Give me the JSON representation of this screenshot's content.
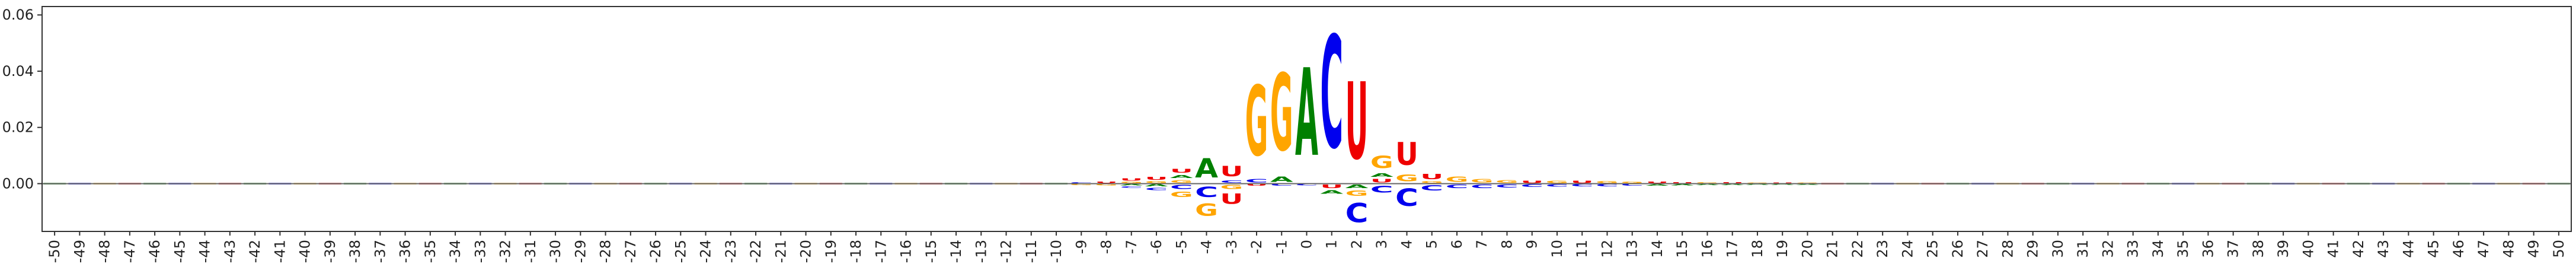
{
  "chart_data": {
    "type": "sequence-logo",
    "alphabet": [
      "A",
      "C",
      "G",
      "U"
    ],
    "colors": {
      "A": "#008000",
      "C": "#0000ee",
      "G": "#ffa500",
      "U": "#ee0000"
    },
    "x": [
      -50,
      -49,
      -48,
      -47,
      -46,
      -45,
      -44,
      -43,
      -42,
      -41,
      -40,
      -39,
      -38,
      -37,
      -36,
      -35,
      -34,
      -33,
      -32,
      -31,
      -30,
      -29,
      -28,
      -27,
      -26,
      -25,
      -24,
      -23,
      -22,
      -21,
      -20,
      -19,
      -18,
      -17,
      -16,
      -15,
      -14,
      -13,
      -12,
      -11,
      -10,
      -9,
      -8,
      -7,
      -6,
      -5,
      -4,
      -3,
      -2,
      -1,
      0,
      1,
      2,
      3,
      4,
      5,
      6,
      7,
      8,
      9,
      10,
      11,
      12,
      13,
      14,
      15,
      16,
      17,
      18,
      19,
      20,
      21,
      22,
      23,
      24,
      25,
      26,
      27,
      28,
      29,
      30,
      31,
      32,
      33,
      34,
      35,
      36,
      37,
      38,
      39,
      40,
      41,
      42,
      43,
      44,
      45,
      46,
      47,
      48,
      49,
      50
    ],
    "x_tick_labels": [
      "-50",
      "-49",
      "-48",
      "-47",
      "-46",
      "-45",
      "-44",
      "-43",
      "-42",
      "-41",
      "-40",
      "-39",
      "-38",
      "-37",
      "-36",
      "-35",
      "-34",
      "-33",
      "-32",
      "-31",
      "-30",
      "-29",
      "-28",
      "-27",
      "-26",
      "-25",
      "-24",
      "-23",
      "-22",
      "-21",
      "-20",
      "-19",
      "-18",
      "-17",
      "-16",
      "-15",
      "-14",
      "-13",
      "-12",
      "-11",
      "-10",
      "-9",
      "-8",
      "-7",
      "-6",
      "-5",
      "-4",
      "-3",
      "-2",
      "-1",
      "0",
      "1",
      "2",
      "3",
      "4",
      "5",
      "6",
      "7",
      "8",
      "9",
      "10",
      "11",
      "12",
      "13",
      "14",
      "15",
      "16",
      "17",
      "18",
      "19",
      "20",
      "21",
      "22",
      "23",
      "24",
      "25",
      "26",
      "27",
      "28",
      "29",
      "30",
      "31",
      "32",
      "33",
      "34",
      "35",
      "36",
      "37",
      "38",
      "39",
      "40",
      "41",
      "42",
      "43",
      "44",
      "45",
      "46",
      "47",
      "48",
      "49",
      "50"
    ],
    "y_ticks": [
      0.0,
      0.02,
      0.04,
      0.06
    ],
    "y_tick_labels": [
      "0.00",
      "0.02",
      "0.04",
      "0.06"
    ],
    "ylim": [
      -0.017,
      0.063
    ],
    "baseline": 0.0,
    "grid": false,
    "columns": [
      {
        "pos": -9,
        "letters": [
          [
            "C",
            0.0006
          ],
          [
            "G",
            -0.0007
          ]
        ]
      },
      {
        "pos": -8,
        "letters": [
          [
            "U",
            0.0008
          ],
          [
            "G",
            -0.0008
          ]
        ]
      },
      {
        "pos": -7,
        "letters": [
          [
            "U",
            0.0012
          ],
          [
            "G",
            0.0008
          ],
          [
            "A",
            -0.0008
          ],
          [
            "C",
            -0.0009
          ]
        ]
      },
      {
        "pos": -6,
        "letters": [
          [
            "U",
            0.0018
          ],
          [
            "G",
            0.001
          ],
          [
            "C",
            -0.0014
          ],
          [
            "A",
            -0.0012
          ]
        ]
      },
      {
        "pos": -5,
        "letters": [
          [
            "U",
            0.0022
          ],
          [
            "A",
            0.0018
          ],
          [
            "G",
            0.0016
          ],
          [
            "C",
            -0.0024
          ],
          [
            "G",
            -0.003
          ]
        ]
      },
      {
        "pos": -4,
        "letters": [
          [
            "A",
            0.011
          ],
          [
            "C",
            -0.006
          ],
          [
            "G",
            -0.007
          ]
        ]
      },
      {
        "pos": -3,
        "letters": [
          [
            "U",
            0.006
          ],
          [
            "C",
            0.0014
          ],
          [
            "G",
            -0.0024
          ],
          [
            "U",
            -0.006
          ]
        ]
      },
      {
        "pos": -2,
        "letters": [
          [
            "G",
            0.04
          ],
          [
            "C",
            0.002
          ],
          [
            "U",
            -0.001
          ]
        ]
      },
      {
        "pos": -1,
        "letters": [
          [
            "G",
            0.044
          ],
          [
            "A",
            0.003
          ],
          [
            "C",
            -0.001
          ]
        ]
      },
      {
        "pos": 0,
        "letters": [
          [
            "A",
            0.05
          ],
          [
            "C",
            -0.0008
          ]
        ]
      },
      {
        "pos": 1,
        "letters": [
          [
            "C",
            0.064
          ],
          [
            "U",
            -0.002
          ],
          [
            "A",
            -0.002
          ]
        ]
      },
      {
        "pos": 2,
        "letters": [
          [
            "U",
            0.044
          ],
          [
            "A",
            -0.002
          ],
          [
            "G",
            -0.003
          ],
          [
            "C",
            -0.011
          ]
        ]
      },
      {
        "pos": 3,
        "letters": [
          [
            "G",
            0.007
          ],
          [
            "U",
            0.002
          ],
          [
            "A",
            0.002
          ],
          [
            "C",
            -0.004
          ]
        ]
      },
      {
        "pos": 4,
        "letters": [
          [
            "U",
            0.013
          ],
          [
            "G",
            0.004
          ],
          [
            "C",
            -0.01
          ]
        ]
      },
      {
        "pos": 5,
        "letters": [
          [
            "U",
            0.003
          ],
          [
            "G",
            0.001
          ],
          [
            "C",
            -0.003
          ]
        ]
      },
      {
        "pos": 6,
        "letters": [
          [
            "G",
            0.003
          ],
          [
            "C",
            -0.002
          ]
        ]
      },
      {
        "pos": 7,
        "letters": [
          [
            "G",
            0.002
          ],
          [
            "C",
            -0.002
          ]
        ]
      },
      {
        "pos": 8,
        "letters": [
          [
            "G",
            0.0016
          ],
          [
            "C",
            -0.0018
          ]
        ]
      },
      {
        "pos": 9,
        "letters": [
          [
            "U",
            0.0012
          ],
          [
            "C",
            -0.0015
          ]
        ]
      },
      {
        "pos": 10,
        "letters": [
          [
            "G",
            0.0012
          ],
          [
            "C",
            -0.0014
          ]
        ]
      },
      {
        "pos": 11,
        "letters": [
          [
            "U",
            0.0012
          ],
          [
            "C",
            -0.0012
          ]
        ]
      },
      {
        "pos": 12,
        "letters": [
          [
            "G",
            0.001
          ],
          [
            "C",
            -0.0012
          ]
        ]
      },
      {
        "pos": 13,
        "letters": [
          [
            "G",
            0.0009
          ],
          [
            "C",
            -0.001
          ]
        ]
      },
      {
        "pos": 14,
        "letters": [
          [
            "U",
            0.0008
          ],
          [
            "A",
            -0.0009
          ]
        ]
      },
      {
        "pos": 15,
        "letters": [
          [
            "U",
            0.0007
          ],
          [
            "A",
            -0.0008
          ]
        ]
      },
      {
        "pos": 16,
        "letters": [
          [
            "G",
            0.0006
          ],
          [
            "A",
            -0.0007
          ]
        ]
      },
      {
        "pos": 17,
        "letters": [
          [
            "U",
            0.0006
          ],
          [
            "A",
            -0.0007
          ]
        ]
      },
      {
        "pos": 18,
        "letters": [
          [
            "G",
            0.0005
          ],
          [
            "A",
            -0.0006
          ]
        ]
      },
      {
        "pos": 19,
        "letters": [
          [
            "U",
            0.0005
          ],
          [
            "A",
            -0.0006
          ]
        ]
      },
      {
        "pos": 20,
        "letters": [
          [
            "G",
            0.0005
          ],
          [
            "A",
            -0.0005
          ]
        ]
      }
    ]
  }
}
